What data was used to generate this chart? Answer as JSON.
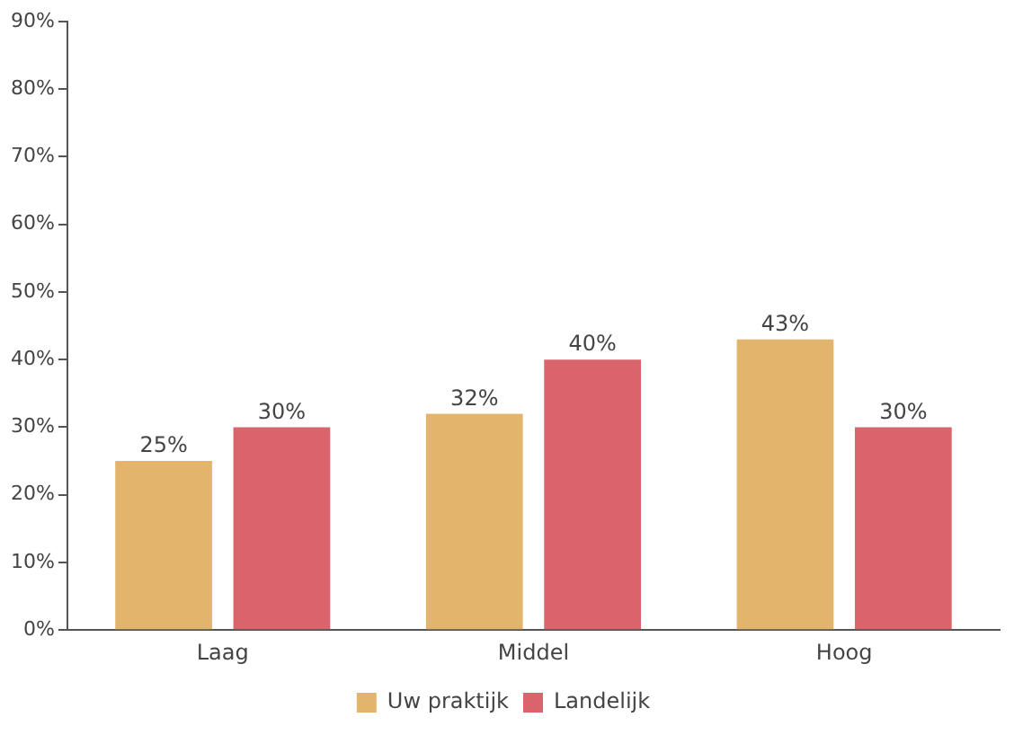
{
  "chart_data": {
    "type": "bar",
    "categories": [
      "Laag",
      "Middel",
      "Hoog"
    ],
    "series": [
      {
        "name": "Uw praktijk",
        "color": "#e3b56c",
        "values": [
          25,
          32,
          43
        ],
        "value_labels": [
          "25%",
          "32%",
          "43%"
        ]
      },
      {
        "name": "Landelijk",
        "color": "#d9646b",
        "values": [
          30,
          40,
          30
        ],
        "value_labels": [
          "30%",
          "40%",
          "30%"
        ]
      }
    ],
    "ylim": [
      0,
      90
    ],
    "yticks": [
      {
        "value": 0,
        "label": "0%"
      },
      {
        "value": 10,
        "label": "10%"
      },
      {
        "value": 20,
        "label": "20%"
      },
      {
        "value": 30,
        "label": "30%"
      },
      {
        "value": 40,
        "label": "40%"
      },
      {
        "value": 50,
        "label": "50%"
      },
      {
        "value": 60,
        "label": "60%"
      },
      {
        "value": 70,
        "label": "70%"
      },
      {
        "value": 80,
        "label": "80%"
      },
      {
        "value": 90,
        "label": "90%"
      }
    ],
    "grid": false,
    "legend": "bottom"
  }
}
